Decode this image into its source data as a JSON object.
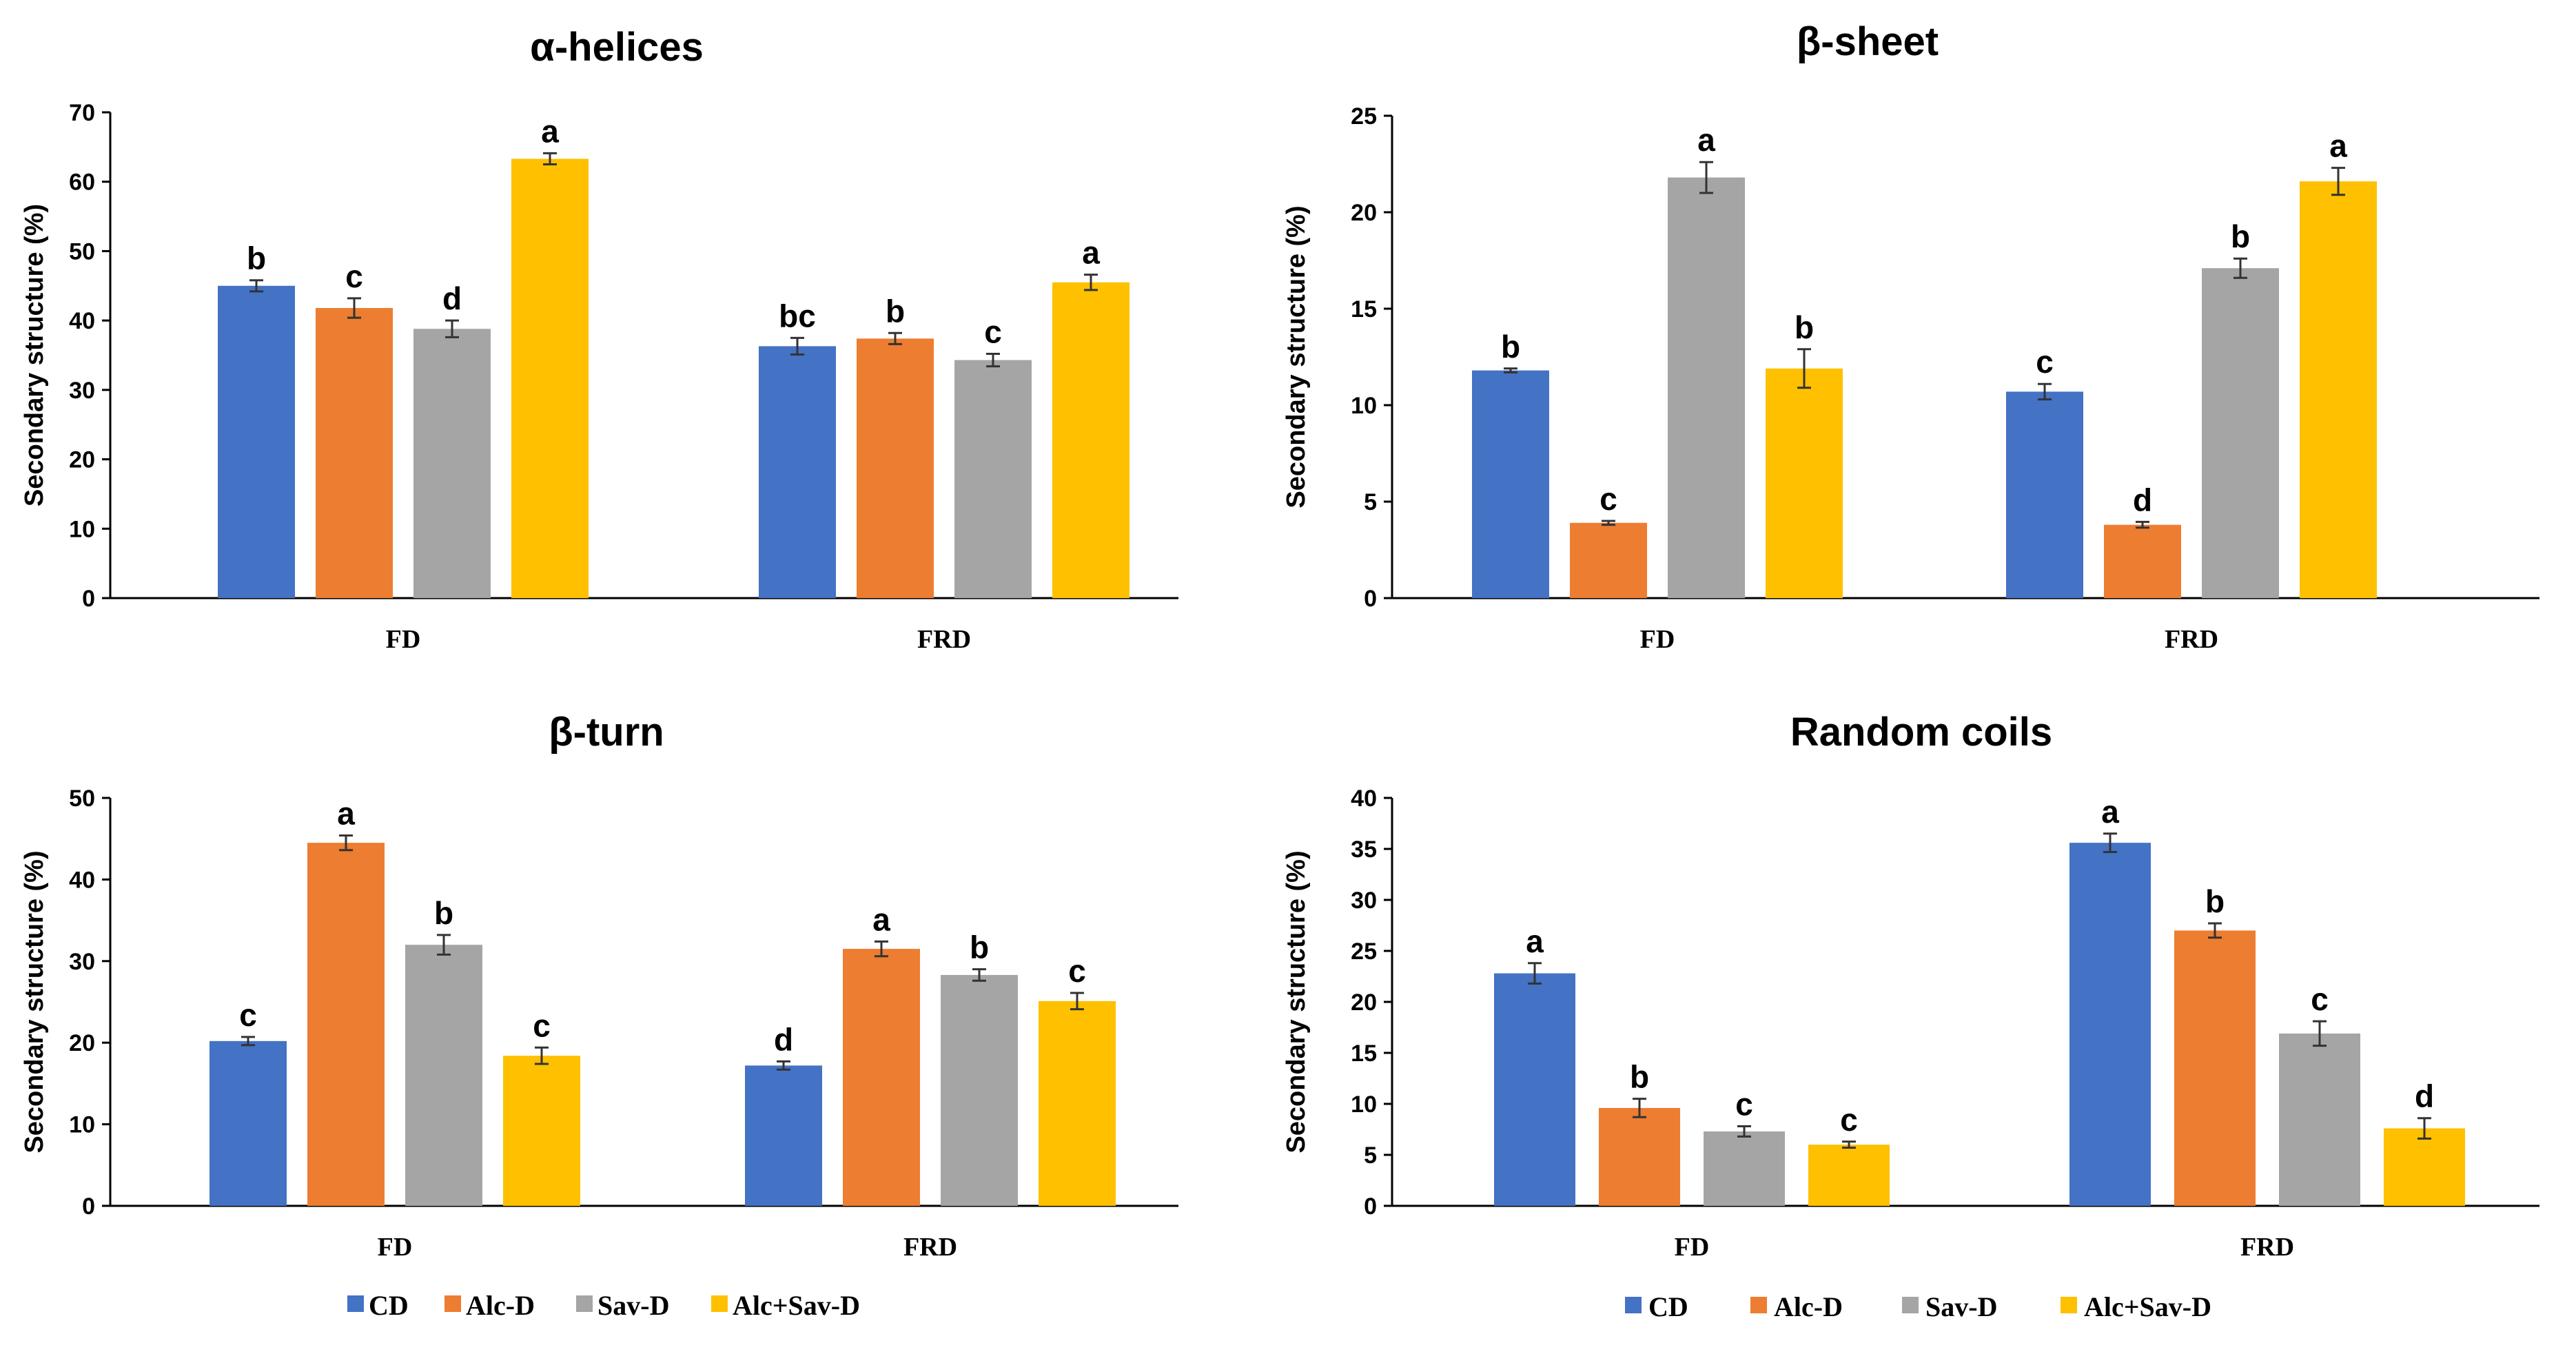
{
  "legend": [
    {
      "name": "CD",
      "color": "#4472C4"
    },
    {
      "name": "Alc-D",
      "color": "#ED7D31"
    },
    {
      "name": "Sav-D",
      "color": "#A5A5A5"
    },
    {
      "name": "Alc+Sav-D",
      "color": "#FFC000"
    }
  ],
  "chart_data": [
    {
      "type": "bar",
      "title": "α-helices",
      "ylabel": "Secondary structure (%)",
      "xlabel": "",
      "ylim": [
        0,
        70
      ],
      "yticks": [
        0,
        10,
        20,
        30,
        40,
        50,
        60,
        70
      ],
      "categories": [
        "FD",
        "FRD"
      ],
      "series": [
        {
          "name": "CD",
          "values": [
            45.0,
            36.3
          ],
          "errors": [
            0.8,
            1.2
          ],
          "letters": [
            "b",
            "bc"
          ]
        },
        {
          "name": "Alc-D",
          "values": [
            41.8,
            37.4
          ],
          "errors": [
            1.4,
            0.8
          ],
          "letters": [
            "c",
            "b"
          ]
        },
        {
          "name": "Sav-D",
          "values": [
            38.8,
            34.3
          ],
          "errors": [
            1.2,
            0.9
          ],
          "letters": [
            "d",
            "c"
          ]
        },
        {
          "name": "Alc+Sav-D",
          "values": [
            63.3,
            45.5
          ],
          "errors": [
            0.8,
            1.1
          ],
          "letters": [
            "a",
            "a"
          ]
        }
      ]
    },
    {
      "type": "bar",
      "title": "β-sheet",
      "ylabel": "Secondary structure (%)",
      "xlabel": "",
      "ylim": [
        0,
        25
      ],
      "yticks": [
        0,
        5,
        10,
        15,
        20,
        25
      ],
      "categories": [
        "FD",
        "FRD"
      ],
      "series": [
        {
          "name": "CD",
          "values": [
            11.8,
            10.7
          ],
          "errors": [
            0.1,
            0.4
          ],
          "letters": [
            "b",
            "c"
          ]
        },
        {
          "name": "Alc-D",
          "values": [
            3.9,
            3.8
          ],
          "errors": [
            0.1,
            0.15
          ],
          "letters": [
            "c",
            "d"
          ]
        },
        {
          "name": "Sav-D",
          "values": [
            21.8,
            17.1
          ],
          "errors": [
            0.8,
            0.5
          ],
          "letters": [
            "a",
            "b"
          ]
        },
        {
          "name": "Alc+Sav-D",
          "values": [
            11.9,
            21.6
          ],
          "errors": [
            1.0,
            0.7
          ],
          "letters": [
            "b",
            "a"
          ]
        }
      ]
    },
    {
      "type": "bar",
      "title": "β-turn",
      "ylabel": "Secondary structure (%)",
      "xlabel": "",
      "ylim": [
        0,
        50
      ],
      "yticks": [
        0,
        10,
        20,
        30,
        40,
        50
      ],
      "categories": [
        "FD",
        "FRD"
      ],
      "series": [
        {
          "name": "CD",
          "values": [
            20.2,
            17.2
          ],
          "errors": [
            0.5,
            0.5
          ],
          "letters": [
            "c",
            "d"
          ]
        },
        {
          "name": "Alc-D",
          "values": [
            44.5,
            31.5
          ],
          "errors": [
            0.9,
            0.9
          ],
          "letters": [
            "a",
            "a"
          ]
        },
        {
          "name": "Sav-D",
          "values": [
            32.0,
            28.3
          ],
          "errors": [
            1.2,
            0.7
          ],
          "letters": [
            "b",
            "b"
          ]
        },
        {
          "name": "Alc+Sav-D",
          "values": [
            18.4,
            25.1
          ],
          "errors": [
            1.0,
            1.0
          ],
          "letters": [
            "c",
            "c"
          ]
        }
      ]
    },
    {
      "type": "bar",
      "title": "Random coils",
      "ylabel": "Secondary structure (%)",
      "xlabel": "",
      "ylim": [
        0,
        40
      ],
      "yticks": [
        0,
        5,
        10,
        15,
        20,
        25,
        30,
        35,
        40
      ],
      "categories": [
        "FD",
        "FRD"
      ],
      "series": [
        {
          "name": "CD",
          "values": [
            22.8,
            35.6
          ],
          "errors": [
            1.0,
            0.9
          ],
          "letters": [
            "a",
            "a"
          ]
        },
        {
          "name": "Alc-D",
          "values": [
            9.6,
            27.0
          ],
          "errors": [
            0.9,
            0.7
          ],
          "letters": [
            "b",
            "b"
          ]
        },
        {
          "name": "Sav-D",
          "values": [
            7.3,
            16.9
          ],
          "errors": [
            0.5,
            1.2
          ],
          "letters": [
            "c",
            "c"
          ]
        },
        {
          "name": "Alc+Sav-D",
          "values": [
            6.0,
            7.6
          ],
          "errors": [
            0.3,
            1.0
          ],
          "letters": [
            "c",
            "d"
          ]
        }
      ]
    }
  ]
}
